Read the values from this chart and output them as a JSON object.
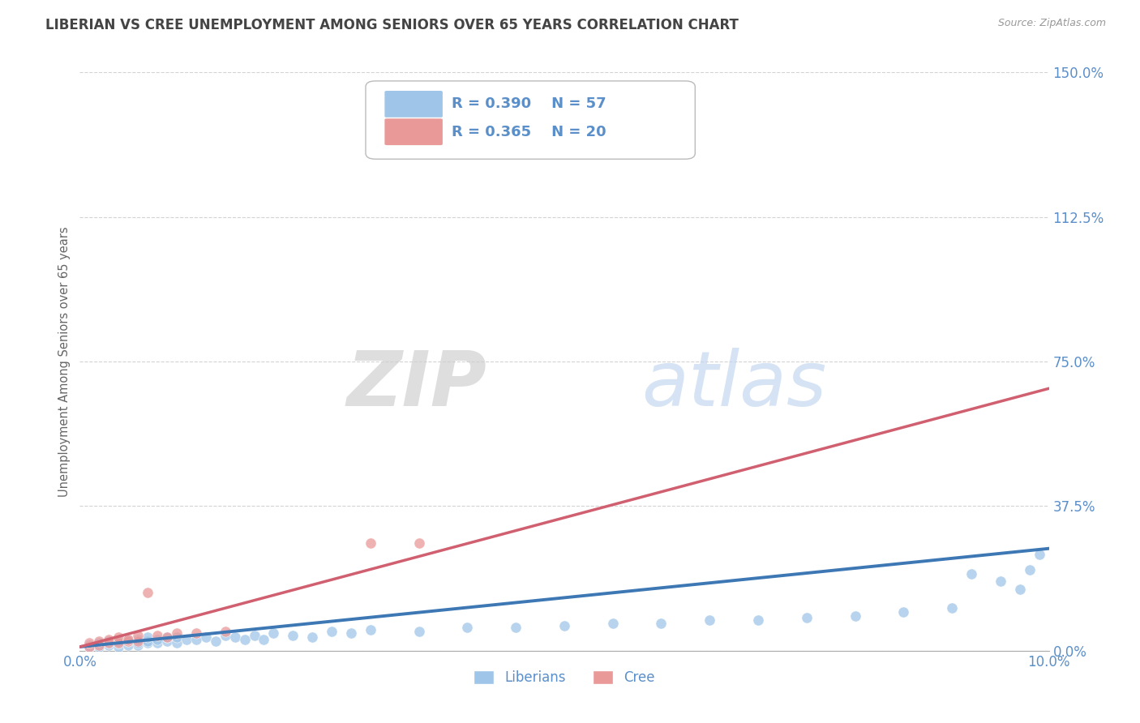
{
  "title": "LIBERIAN VS CREE UNEMPLOYMENT AMONG SENIORS OVER 65 YEARS CORRELATION CHART",
  "source": "Source: ZipAtlas.com",
  "ylabel": "Unemployment Among Seniors over 65 years",
  "xlim": [
    0.0,
    0.1
  ],
  "ylim": [
    0.0,
    1.5
  ],
  "xtick_positions": [
    0.0,
    0.1
  ],
  "xtick_labels": [
    "0.0%",
    "10.0%"
  ],
  "yticks": [
    0.0,
    0.375,
    0.75,
    1.125,
    1.5
  ],
  "ytick_labels": [
    "0.0%",
    "37.5%",
    "75.0%",
    "112.5%",
    "150.0%"
  ],
  "watermark_zip": "ZIP",
  "watermark_atlas": "atlas",
  "legend_R_blue": "R = 0.390",
  "legend_N_blue": "N = 57",
  "legend_R_pink": "R = 0.365",
  "legend_N_pink": "N = 20",
  "legend_label_blue": "Liberians",
  "legend_label_pink": "Cree",
  "blue_color": "#9fc5e8",
  "pink_color": "#ea9999",
  "blue_line_color": "#3d78b5",
  "pink_line_color": "#d06070",
  "text_color": "#5b8fc9",
  "title_color": "#444444",
  "grid_color": "#c8c8c8",
  "blue_scatter_x": [
    0.001,
    0.001,
    0.002,
    0.002,
    0.003,
    0.003,
    0.003,
    0.004,
    0.004,
    0.004,
    0.005,
    0.005,
    0.005,
    0.006,
    0.006,
    0.006,
    0.007,
    0.007,
    0.007,
    0.008,
    0.008,
    0.009,
    0.009,
    0.01,
    0.01,
    0.011,
    0.012,
    0.013,
    0.014,
    0.015,
    0.016,
    0.017,
    0.018,
    0.019,
    0.02,
    0.022,
    0.024,
    0.026,
    0.028,
    0.03,
    0.035,
    0.04,
    0.045,
    0.05,
    0.055,
    0.06,
    0.065,
    0.07,
    0.075,
    0.08,
    0.085,
    0.09,
    0.092,
    0.095,
    0.097,
    0.098,
    0.099
  ],
  "blue_scatter_y": [
    0.01,
    0.015,
    0.01,
    0.02,
    0.015,
    0.02,
    0.025,
    0.01,
    0.02,
    0.025,
    0.015,
    0.025,
    0.03,
    0.015,
    0.02,
    0.03,
    0.02,
    0.025,
    0.035,
    0.02,
    0.03,
    0.025,
    0.035,
    0.02,
    0.035,
    0.03,
    0.03,
    0.035,
    0.025,
    0.04,
    0.035,
    0.03,
    0.04,
    0.03,
    0.045,
    0.04,
    0.035,
    0.05,
    0.045,
    0.055,
    0.05,
    0.06,
    0.06,
    0.065,
    0.07,
    0.07,
    0.08,
    0.08,
    0.085,
    0.09,
    0.1,
    0.11,
    0.2,
    0.18,
    0.16,
    0.21,
    0.25
  ],
  "pink_scatter_x": [
    0.001,
    0.001,
    0.002,
    0.002,
    0.003,
    0.003,
    0.004,
    0.004,
    0.005,
    0.005,
    0.006,
    0.006,
    0.007,
    0.008,
    0.009,
    0.01,
    0.012,
    0.015,
    0.03,
    0.035
  ],
  "pink_scatter_y": [
    0.01,
    0.02,
    0.015,
    0.025,
    0.02,
    0.03,
    0.02,
    0.035,
    0.025,
    0.03,
    0.025,
    0.04,
    0.15,
    0.04,
    0.035,
    0.045,
    0.045,
    0.05,
    0.28,
    0.28
  ],
  "blue_trend_x": [
    0.0,
    0.1
  ],
  "blue_trend_y": [
    0.01,
    0.265
  ],
  "pink_trend_x": [
    0.0,
    0.1
  ],
  "pink_trend_y": [
    0.01,
    0.68
  ]
}
